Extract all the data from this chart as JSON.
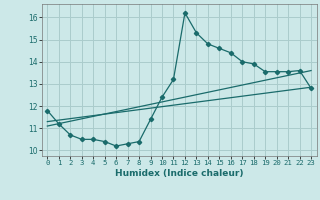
{
  "xlabel": "Humidex (Indice chaleur)",
  "bg_color": "#cce8e8",
  "grid_color": "#aacccc",
  "line_color": "#1a6b6b",
  "xlim": [
    -0.5,
    23.5
  ],
  "ylim": [
    9.75,
    16.6
  ],
  "xticks": [
    0,
    1,
    2,
    3,
    4,
    5,
    6,
    7,
    8,
    9,
    10,
    11,
    12,
    13,
    14,
    15,
    16,
    17,
    18,
    19,
    20,
    21,
    22,
    23
  ],
  "yticks": [
    10,
    11,
    12,
    13,
    14,
    15,
    16
  ],
  "curve1_x": [
    0,
    1,
    2,
    3,
    4,
    5,
    6,
    7,
    8,
    9,
    10,
    11,
    12,
    13,
    14,
    15,
    16,
    17,
    18,
    19,
    20,
    21,
    22,
    23
  ],
  "curve1_y": [
    11.8,
    11.2,
    10.7,
    10.5,
    10.5,
    10.4,
    10.2,
    10.3,
    10.4,
    11.4,
    12.4,
    13.2,
    16.2,
    15.3,
    14.8,
    14.6,
    14.4,
    14.0,
    13.9,
    13.55,
    13.55,
    13.55,
    13.6,
    12.8
  ],
  "line1_x": [
    0,
    23
  ],
  "line1_y": [
    11.1,
    13.6
  ],
  "line2_x": [
    0,
    23
  ],
  "line2_y": [
    11.3,
    12.85
  ]
}
